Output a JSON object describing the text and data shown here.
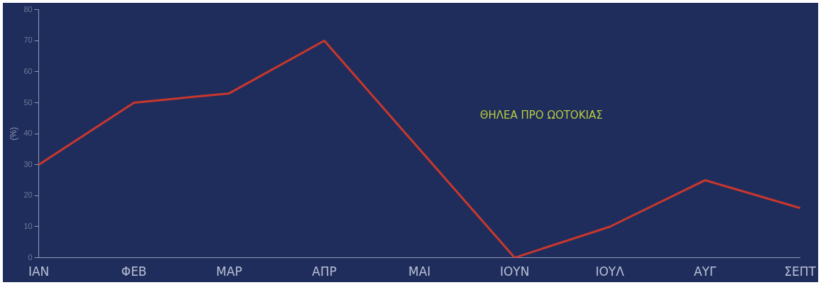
{
  "chart_data": {
    "type": "line",
    "ylabel": "(%)",
    "categories": [
      "ΙΑΝ",
      "ΦΕΒ",
      "ΜΑΡ",
      "ΑΠΡ",
      "ΜΑΙ",
      "ΙΟΥΝ",
      "ΙΟΥΛ",
      "ΑΥΓ",
      "ΣΕΠΤ"
    ],
    "series": [
      {
        "color": "#c8372d",
        "values": [
          30,
          50,
          53,
          70,
          35,
          0,
          10,
          25,
          16
        ]
      }
    ],
    "ylim": [
      0,
      80
    ],
    "yticks": [
      0,
      10,
      20,
      30,
      40,
      50,
      60,
      70,
      80
    ],
    "grid": false,
    "legend": false,
    "marker": "none",
    "line_style": "solid",
    "annotations": [
      "ΘΗΛΕΑ ΠΡΟ ΩΟΤΟΚΙΑΣ"
    ]
  }
}
